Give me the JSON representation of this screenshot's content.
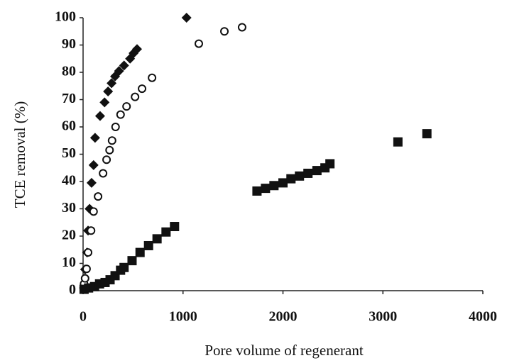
{
  "chart_data": {
    "type": "scatter",
    "x_label": "Pore volume of regenerant",
    "y_label": "TCE removal (%)",
    "xlim": [
      0,
      4000
    ],
    "xticks": [
      0,
      1000,
      2000,
      3000,
      4000
    ],
    "ylim": [
      0,
      100
    ],
    "yticks": [
      0,
      10,
      20,
      30,
      40,
      50,
      60,
      70,
      80,
      90,
      100
    ],
    "grid": false,
    "series": [
      {
        "color": "#111111",
        "marker": "diamond",
        "x": [
          20,
          40,
          50,
          65,
          85,
          105,
          120,
          170,
          215,
          250,
          285,
          320,
          360,
          410,
          470,
          505,
          540,
          1035
        ],
        "values": [
          7.8,
          14,
          22,
          30,
          39.5,
          46,
          56,
          64,
          69,
          73,
          76,
          78.5,
          80.5,
          82.5,
          85,
          87,
          88.5,
          100
        ]
      },
      {
        "color": "#111111",
        "marker": "open-circle",
        "x": [
          5,
          10,
          20,
          35,
          50,
          80,
          105,
          150,
          200,
          235,
          265,
          290,
          325,
          375,
          435,
          520,
          590,
          690,
          1158,
          1414,
          1591
        ],
        "values": [
          1,
          2.5,
          4.5,
          8,
          14,
          22,
          29,
          34.5,
          43,
          48,
          51.5,
          55,
          60,
          64.5,
          67.5,
          71,
          74,
          78,
          90.5,
          95,
          96.5
        ]
      },
      {
        "color": "#111111",
        "marker": "square",
        "x": [
          10,
          55,
          115,
          165,
          220,
          270,
          320,
          375,
          410,
          490,
          570,
          655,
          740,
          830,
          915,
          1740,
          1825,
          1910,
          2000,
          2080,
          2165,
          2250,
          2340,
          2420,
          2470,
          3150,
          3440
        ],
        "values": [
          0.5,
          1,
          1.5,
          2.5,
          3,
          4,
          5.5,
          7.5,
          8.5,
          11,
          14,
          16.5,
          19,
          21.5,
          23.5,
          36.5,
          37.5,
          38.5,
          39.5,
          41,
          42,
          43,
          44,
          45,
          46.5,
          54.5,
          57.5
        ]
      }
    ]
  }
}
